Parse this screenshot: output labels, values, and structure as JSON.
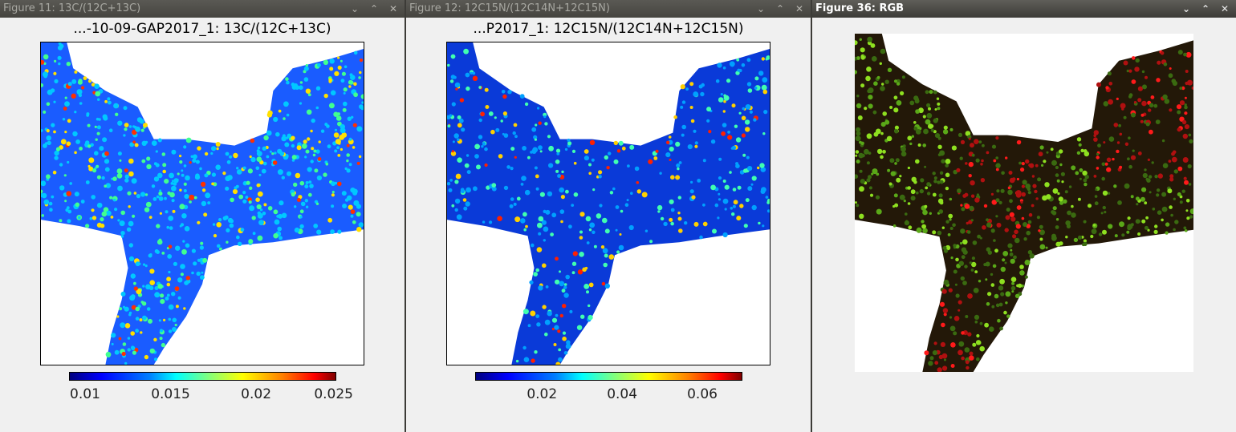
{
  "windows": [
    {
      "title": "Figure 11: 13C/(12C+13C)",
      "figure_title": "...-10-09-GAP2017_1: 13C/(12C+13C)",
      "colorbar_ticks": [
        "0.01",
        "0.015",
        "0.02",
        "0.025"
      ]
    },
    {
      "title": "Figure 12: 12C15N/(12C14N+12C15N)",
      "figure_title": "...P2017_1: 12C15N/(12C14N+12C15N)",
      "colorbar_ticks": [
        "0.02",
        "0.04",
        "0.06"
      ]
    },
    {
      "title": "Figure 36: RGB"
    }
  ],
  "titlebar_buttons": {
    "menu": "⌄",
    "maximize": "⌃",
    "close": "✕"
  },
  "colors": {
    "jet_low": "#00007f",
    "jet_mid": "#00ffff",
    "jet_high": "#7f0000",
    "rgb_green": "#6fcf1f",
    "rgb_red": "#ff1010"
  }
}
